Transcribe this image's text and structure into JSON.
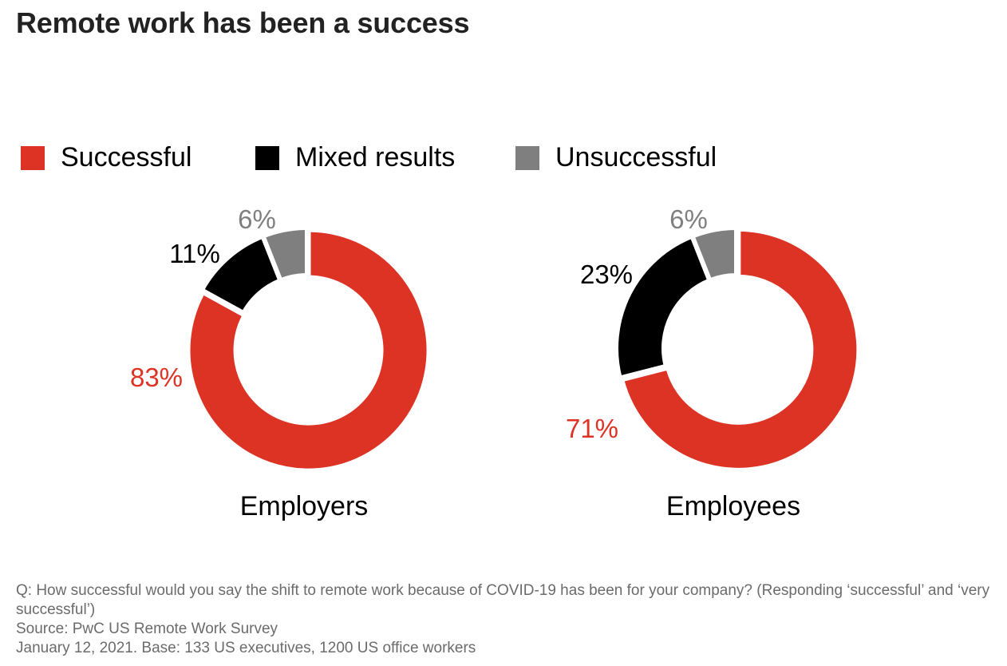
{
  "title": "Remote work has been a success",
  "colors": {
    "successful": "#dd3325",
    "mixed": "#000000",
    "unsuccessful": "#7f7f7f"
  },
  "legend": [
    {
      "label": "Successful",
      "color": "#dd3325"
    },
    {
      "label": "Mixed results",
      "color": "#000000"
    },
    {
      "label": "Unsuccessful",
      "color": "#7f7f7f"
    }
  ],
  "chart_data": [
    {
      "type": "pie",
      "title": "Employers",
      "categories": [
        "Successful",
        "Mixed results",
        "Unsuccessful"
      ],
      "values": [
        83,
        11,
        6
      ],
      "labels": [
        "83%",
        "11%",
        "6%"
      ]
    },
    {
      "type": "pie",
      "title": "Employees",
      "categories": [
        "Successful",
        "Mixed results",
        "Unsuccessful"
      ],
      "values": [
        71,
        23,
        6
      ],
      "labels": [
        "71%",
        "23%",
        "6%"
      ]
    }
  ],
  "footnote": {
    "question": "Q: How successful would you say the shift to remote work because of COVID-19 has been for your company? (Responding ‘successful’ and ‘very successful’)",
    "source": "Source: PwC US Remote Work Survey",
    "date_base": "January 12, 2021. Base: 133 US executives, 1200 US office workers"
  }
}
